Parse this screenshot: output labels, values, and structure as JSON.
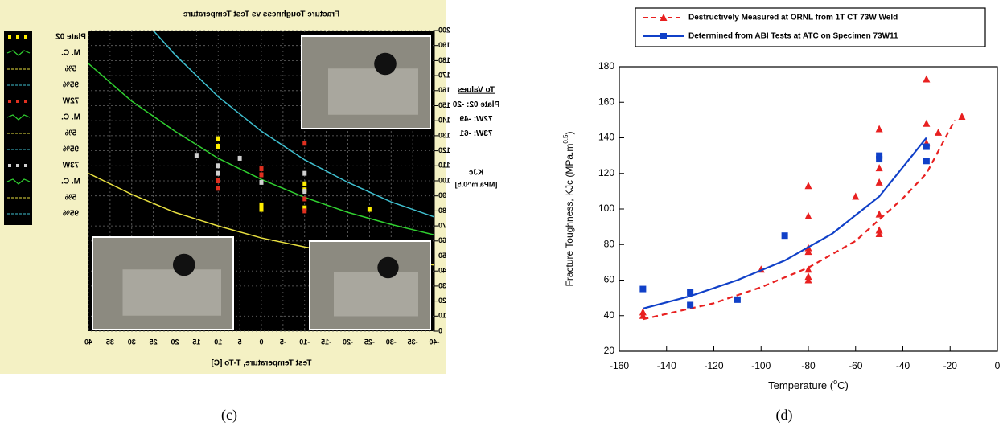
{
  "chart_data": [
    {
      "type": "line",
      "title": "Fracture Toughness vs Test Temperature",
      "x_label": "Test Temperature, T-To [C]",
      "y_label": "KJc",
      "y_label_2": "[MPa m^0.5]",
      "xlim": [
        -40,
        40
      ],
      "xticks": [
        -40,
        -35,
        -30,
        -25,
        -20,
        -15,
        -10,
        -5,
        0,
        5,
        10,
        15,
        20,
        25,
        30,
        35,
        40
      ],
      "ylim": [
        0,
        200
      ],
      "yticks": [
        0,
        10,
        20,
        30,
        40,
        50,
        60,
        70,
        80,
        90,
        100,
        110,
        120,
        130,
        140,
        150,
        160,
        170,
        180,
        190,
        200
      ],
      "grid": true,
      "mirrored": true,
      "series": [
        {
          "color": "#3fc0d0",
          "x": [
            25,
            20,
            10,
            0,
            -10,
            -20,
            -30,
            -40
          ],
          "values": [
            200,
            184,
            156,
            133,
            114,
            99,
            86,
            76
          ]
        },
        {
          "color": "#30d030",
          "x": [
            40,
            30,
            20,
            10,
            0,
            -10,
            -20,
            -30,
            -40
          ],
          "values": [
            178,
            153,
            133,
            115,
            101,
            89,
            79,
            71,
            64
          ]
        },
        {
          "color": "#e8e040",
          "x": [
            40,
            30,
            20,
            10,
            0,
            -10,
            -20,
            -30,
            -40
          ],
          "values": [
            105,
            91,
            79,
            70,
            62,
            56,
            51,
            47,
            44
          ]
        }
      ],
      "points": [
        {
          "color": "#ffee00",
          "x": [
            10,
            10,
            0,
            0,
            -10,
            -10,
            -10,
            -25
          ],
          "values": [
            128,
            123,
            84,
            81,
            98,
            94,
            82,
            81
          ]
        },
        {
          "color": "#e03020",
          "x": [
            10,
            10,
            0,
            0,
            -10,
            -10,
            -10
          ],
          "values": [
            100,
            95,
            108,
            104,
            125,
            88,
            80
          ]
        },
        {
          "color": "#d0d0d0",
          "x": [
            10,
            10,
            5,
            0,
            -10,
            -10,
            15
          ],
          "values": [
            110,
            105,
            115,
            99,
            105,
            93,
            117
          ]
        }
      ],
      "legend": [
        {
          "label": "Plate 02",
          "color": "#ffee00",
          "marker": "dots"
        },
        {
          "label": "M. C.",
          "color": "#30d030",
          "marker": "zigzag"
        },
        {
          "label": "5%",
          "color": "#e8e040",
          "marker": "dash"
        },
        {
          "label": "95%",
          "color": "#3fc0d0",
          "marker": "dash"
        },
        {
          "label": "72W",
          "color": "#e03020",
          "marker": "dots"
        },
        {
          "label": "M. C.",
          "color": "#30d030",
          "marker": "zigzag"
        },
        {
          "label": "5%",
          "color": "#e8e040",
          "marker": "dash"
        },
        {
          "label": "95%",
          "color": "#3fc0d0",
          "marker": "dash"
        },
        {
          "label": "73W",
          "color": "#d0d0d0",
          "marker": "dots"
        },
        {
          "label": "M. C.",
          "color": "#30d030",
          "marker": "zigzag"
        },
        {
          "label": "5%",
          "color": "#e8e040",
          "marker": "dash"
        },
        {
          "label": "95%",
          "color": "#3fc0d0",
          "marker": "dash"
        }
      ],
      "to_values": {
        "title": "To Values",
        "items": [
          {
            "label": "Plate 02:",
            "value": -20
          },
          {
            "label": "72W:",
            "value": -49
          },
          {
            "label": "73W:",
            "value": -61
          }
        ]
      }
    },
    {
      "type": "scatter",
      "x_label": "Temperature (",
      "x_label_sup": "o",
      "x_label_end": "C)",
      "y_label": "Fracture Toughness, KJc (MPa.m",
      "y_label_sup": "0.5",
      "y_label_end": ")",
      "xlim": [
        -160,
        0
      ],
      "xticks": [
        -160,
        -140,
        -120,
        -100,
        -80,
        -60,
        -40,
        -20,
        0
      ],
      "ylim": [
        20,
        180
      ],
      "yticks": [
        20,
        40,
        60,
        80,
        100,
        120,
        140,
        160,
        180
      ],
      "series": [
        {
          "name": "Destructively Measured at ORNL from 1T CT 73W Weld",
          "color": "#e82020",
          "marker": "triangle",
          "dashed": true,
          "x": [
            -150,
            -150,
            -100,
            -80,
            -80,
            -80,
            -80,
            -80,
            -80,
            -80,
            -60,
            -50,
            -50,
            -50,
            -50,
            -50,
            -50,
            -30,
            -30,
            -30,
            -25,
            -15
          ],
          "values": [
            40,
            42,
            66,
            113,
            96,
            78,
            76,
            66,
            62,
            60,
            107,
            145,
            123,
            115,
            97,
            88,
            86,
            173,
            148,
            137,
            143,
            152
          ],
          "curve": {
            "x": [
              -150,
              -140,
              -120,
              -100,
              -80,
              -60,
              -40,
              -30,
              -18
            ],
            "values": [
              38,
              41,
              47,
              56,
              67,
              82,
              106,
              120,
              150
            ]
          }
        },
        {
          "name": "Determined from ABI Tests at ATC on Specimen 73W11",
          "color": "#1040c8",
          "marker": "square",
          "dashed": false,
          "x": [
            -150,
            -130,
            -130,
            -110,
            -90,
            -50,
            -50,
            -30,
            -30
          ],
          "values": [
            55,
            53,
            46,
            49,
            85,
            130,
            128,
            135,
            127
          ],
          "curve": {
            "x": [
              -150,
              -130,
              -110,
              -90,
              -70,
              -50,
              -30
            ],
            "values": [
              44,
              51,
              60,
              71,
              86,
              107,
              140
            ]
          }
        }
      ]
    }
  ],
  "captions": [
    "(c)",
    "(d)"
  ]
}
